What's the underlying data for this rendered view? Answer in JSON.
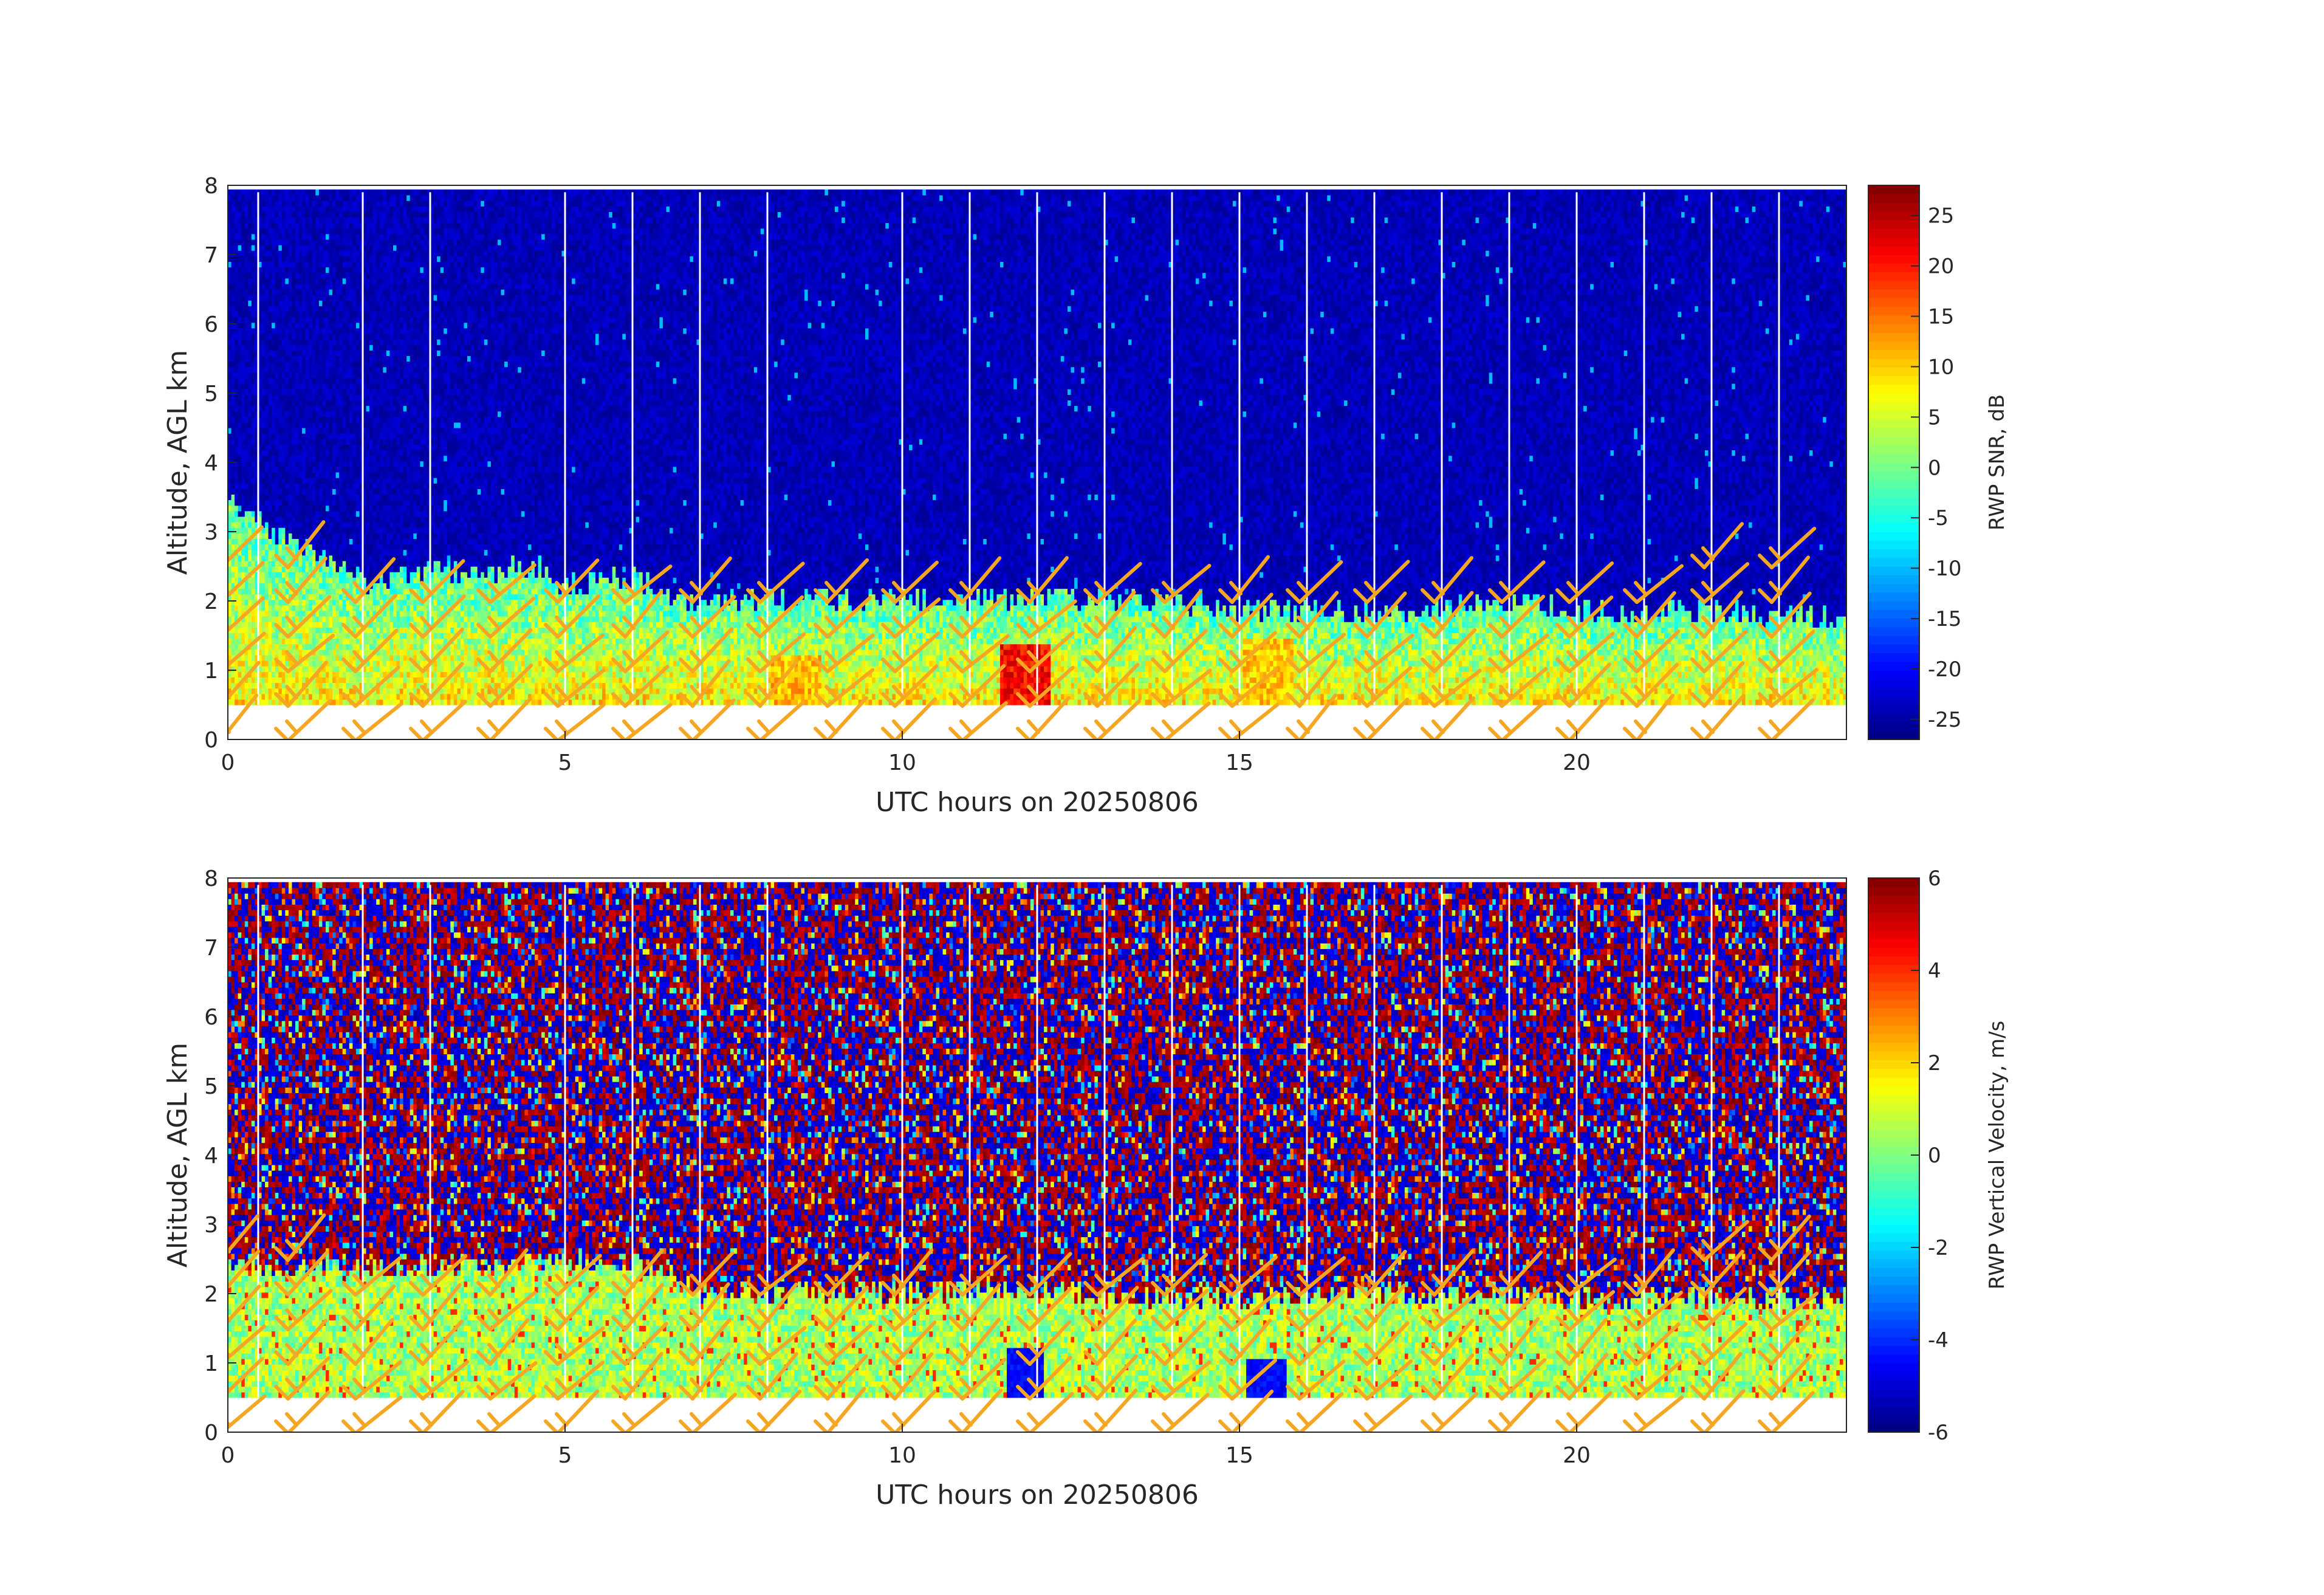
{
  "chart_data": [
    {
      "type": "heatmap",
      "name": "snr",
      "xlabel": "UTC hours on 20250806",
      "ylabel": "Altitude, AGL km",
      "xlim": [
        0,
        24
      ],
      "ylim": [
        0,
        8
      ],
      "xticks": [
        0,
        5,
        10,
        15,
        20
      ],
      "yticks": [
        0,
        1,
        2,
        3,
        4,
        5,
        6,
        7,
        8
      ],
      "colorbar": {
        "label": "RWP SNR, dB",
        "range": [
          -27,
          28
        ],
        "ticks": [
          -25,
          -20,
          -15,
          -10,
          -5,
          0,
          5,
          10,
          15,
          20,
          25
        ],
        "colormap": "jet"
      },
      "data_altitude_range_km": [
        0.5,
        7.9
      ],
      "boundary_layer_top_km": [
        [
          0,
          3.4
        ],
        [
          1,
          2.8
        ],
        [
          2,
          2.2
        ],
        [
          3,
          2.4
        ],
        [
          4,
          2.4
        ],
        [
          4.5,
          2.5
        ],
        [
          5,
          2.2
        ],
        [
          6,
          2.3
        ],
        [
          7,
          1.9
        ],
        [
          8,
          2.0
        ],
        [
          9,
          2.0
        ],
        [
          10,
          2.0
        ],
        [
          11,
          2.0
        ],
        [
          12,
          2.0
        ],
        [
          13,
          2.0
        ],
        [
          14,
          2.0
        ],
        [
          15,
          1.8
        ],
        [
          16,
          1.85
        ],
        [
          17,
          1.8
        ],
        [
          18,
          1.9
        ],
        [
          19,
          1.9
        ],
        [
          20,
          1.85
        ],
        [
          21,
          1.8
        ],
        [
          22,
          1.8
        ],
        [
          23,
          1.75
        ],
        [
          24,
          1.75
        ]
      ],
      "notable_features": [
        {
          "time_h": 11.8,
          "altitude_km": [
            0.5,
            1.3
          ],
          "snr_db": 25
        },
        {
          "time_h": 8.4,
          "altitude_km": [
            0.5,
            1.2
          ],
          "snr_db": 15
        },
        {
          "time_h": 15.4,
          "altitude_km": [
            0.5,
            1.4
          ],
          "snr_db": 14
        }
      ]
    },
    {
      "type": "heatmap",
      "name": "vertical-velocity",
      "xlabel": "UTC hours on 20250806",
      "ylabel": "Altitude, AGL km",
      "xlim": [
        0,
        24
      ],
      "ylim": [
        0,
        8
      ],
      "xticks": [
        0,
        5,
        10,
        15,
        20
      ],
      "yticks": [
        0,
        1,
        2,
        3,
        4,
        5,
        6,
        7,
        8
      ],
      "colorbar": {
        "label": "RWP Vertical Velocity, m/s",
        "range": [
          -6,
          6
        ],
        "ticks": [
          -6,
          -4,
          -2,
          0,
          2,
          4,
          6
        ],
        "colormap": "jet"
      },
      "data_altitude_range_km": [
        0.5,
        7.9
      ],
      "boundary_layer_top_km": [
        [
          0,
          2.4
        ],
        [
          2,
          2.3
        ],
        [
          4,
          2.4
        ],
        [
          6,
          2.4
        ],
        [
          7,
          2.0
        ],
        [
          10,
          2.0
        ],
        [
          12,
          2.0
        ],
        [
          14,
          1.9
        ],
        [
          16,
          1.95
        ],
        [
          18,
          1.95
        ],
        [
          20,
          1.9
        ],
        [
          22,
          1.9
        ],
        [
          24,
          1.9
        ]
      ],
      "notable_features": [
        {
          "time_h": 11.8,
          "altitude_km": [
            0.5,
            1.2
          ],
          "w_ms": -5
        },
        {
          "time_h": 15.4,
          "altitude_km": [
            0.5,
            1.0
          ],
          "w_ms": -5
        }
      ]
    }
  ],
  "data_gaps_hours": [
    0.45,
    2,
    3,
    5,
    6,
    7,
    8,
    10,
    11,
    12,
    13,
    14,
    15,
    16,
    17,
    18,
    19,
    20,
    21,
    22,
    23
  ],
  "wind_barbs": {
    "color": "#f5a623",
    "times_h": [
      0,
      1,
      2,
      3,
      4,
      5,
      6,
      7,
      8,
      9,
      10,
      11,
      12,
      13,
      14,
      15,
      16,
      17,
      18,
      19,
      20,
      21,
      22,
      23
    ],
    "altitudes_km": [
      0,
      0.5,
      1.0,
      1.5,
      2.0,
      2.5
    ],
    "max_altitude_km": [
      2.9,
      2.9,
      2.0,
      2.0,
      2.4,
      2.4,
      2.4,
      2.0,
      2.0,
      2.0,
      2.0,
      2.0,
      2.0,
      2.0,
      2.0,
      2.0,
      2.0,
      2.0,
      2.0,
      2.0,
      2.0,
      2.0,
      2.5,
      2.5
    ]
  }
}
